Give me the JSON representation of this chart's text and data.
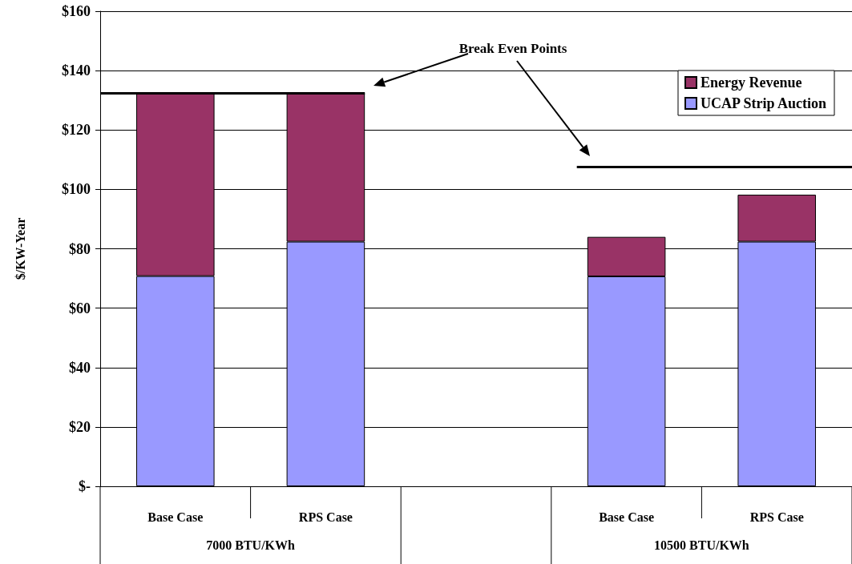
{
  "chart_data": {
    "type": "bar",
    "stacked": true,
    "ylabel": "$/KW-Year",
    "categories": [
      "Base Case",
      "RPS Case",
      null,
      "Base Case",
      "RPS Case"
    ],
    "series": [
      {
        "name": "UCAP Strip Auction",
        "color": "#9999ff",
        "values": [
          70.8,
          82.4,
          null,
          70.7,
          82.4
        ]
      },
      {
        "name": "Energy Revenue",
        "color": "#993366",
        "values": [
          61.7,
          50.1,
          null,
          13.3,
          15.8
        ]
      }
    ],
    "ylim": [
      0,
      160
    ],
    "yticks": [
      {
        "value": 0,
        "label": "$-"
      },
      {
        "value": 20,
        "label": "$20"
      },
      {
        "value": 40,
        "label": "$40"
      },
      {
        "value": 60,
        "label": "$60"
      },
      {
        "value": 80,
        "label": "$80"
      },
      {
        "value": 100,
        "label": "$100"
      },
      {
        "value": 120,
        "label": "$120"
      },
      {
        "value": 140,
        "label": "$140"
      },
      {
        "value": 160,
        "label": "$160"
      }
    ],
    "ref_lines": [
      {
        "axis": "y",
        "value": 132.5,
        "color": "#000000"
      },
      {
        "axis": "y",
        "value": 107.7,
        "color": "#000000"
      }
    ],
    "annotations": [
      "Break Even Points",
      "7000 BTU/KWh",
      "10500 BTU/KWh"
    ],
    "grid": "y",
    "legend": "top right"
  }
}
